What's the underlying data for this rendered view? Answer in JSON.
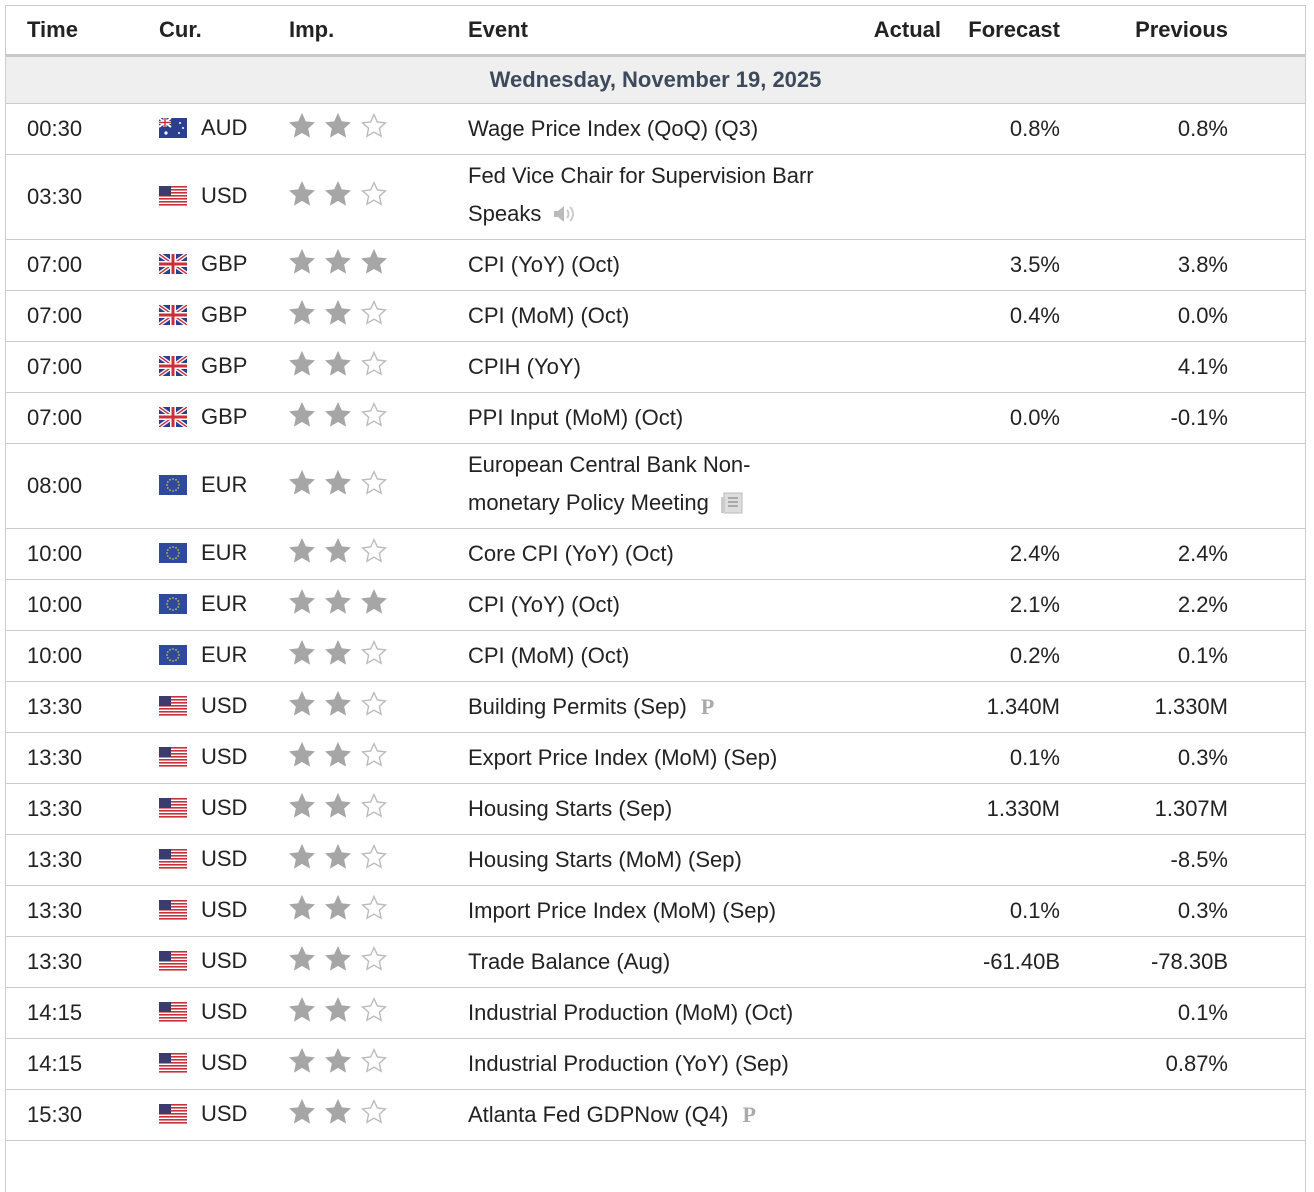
{
  "header": {
    "columns": [
      "Time",
      "Cur.",
      "Imp.",
      "Event",
      "Actual",
      "Forecast",
      "Previous"
    ]
  },
  "date": "Wednesday, November 19, 2025",
  "rows": [
    {
      "time": "00:30",
      "flag": "au",
      "currency": "AUD",
      "importance": 2,
      "event": "Wage Price Index (QoQ) (Q3)",
      "forecast": "0.8%",
      "previous": "0.8%"
    },
    {
      "time": "03:30",
      "flag": "us",
      "currency": "USD",
      "importance": 2,
      "event": "Fed Vice Chair for Supervision Barr Speaks",
      "icon": "speech"
    },
    {
      "time": "07:00",
      "flag": "gb",
      "currency": "GBP",
      "importance": 3,
      "event": "CPI (YoY) (Oct)",
      "forecast": "3.5%",
      "previous": "3.8%"
    },
    {
      "time": "07:00",
      "flag": "gb",
      "currency": "GBP",
      "importance": 2,
      "event": "CPI (MoM) (Oct)",
      "forecast": "0.4%",
      "previous": "0.0%"
    },
    {
      "time": "07:00",
      "flag": "gb",
      "currency": "GBP",
      "importance": 2,
      "event": "CPIH (YoY)",
      "previous": "4.1%"
    },
    {
      "time": "07:00",
      "flag": "gb",
      "currency": "GBP",
      "importance": 2,
      "event": "PPI Input (MoM) (Oct)",
      "forecast": "0.0%",
      "previous": "-0.1%"
    },
    {
      "time": "08:00",
      "flag": "eu",
      "currency": "EUR",
      "importance": 2,
      "event": "European Central Bank Non-monetary Policy Meeting",
      "icon": "report"
    },
    {
      "time": "10:00",
      "flag": "eu",
      "currency": "EUR",
      "importance": 2,
      "event": "Core CPI (YoY) (Oct)",
      "forecast": "2.4%",
      "previous": "2.4%"
    },
    {
      "time": "10:00",
      "flag": "eu",
      "currency": "EUR",
      "importance": 3,
      "event": "CPI (YoY) (Oct)",
      "forecast": "2.1%",
      "previous": "2.2%"
    },
    {
      "time": "10:00",
      "flag": "eu",
      "currency": "EUR",
      "importance": 2,
      "event": "CPI (MoM) (Oct)",
      "forecast": "0.2%",
      "previous": "0.1%"
    },
    {
      "time": "13:30",
      "flag": "us",
      "currency": "USD",
      "importance": 2,
      "event": "Building Permits (Sep)",
      "marker": "P",
      "forecast": "1.340M",
      "previous": "1.330M"
    },
    {
      "time": "13:30",
      "flag": "us",
      "currency": "USD",
      "importance": 2,
      "event": "Export Price Index (MoM) (Sep)",
      "forecast": "0.1%",
      "previous": "0.3%"
    },
    {
      "time": "13:30",
      "flag": "us",
      "currency": "USD",
      "importance": 2,
      "event": "Housing Starts (Sep)",
      "forecast": "1.330M",
      "previous": "1.307M"
    },
    {
      "time": "13:30",
      "flag": "us",
      "currency": "USD",
      "importance": 2,
      "event": "Housing Starts (MoM) (Sep)",
      "previous": "-8.5%"
    },
    {
      "time": "13:30",
      "flag": "us",
      "currency": "USD",
      "importance": 2,
      "event": "Import Price Index (MoM) (Sep)",
      "forecast": "0.1%",
      "previous": "0.3%"
    },
    {
      "time": "13:30",
      "flag": "us",
      "currency": "USD",
      "importance": 2,
      "event": "Trade Balance (Aug)",
      "forecast": "-61.40B",
      "previous": "-78.30B"
    },
    {
      "time": "14:15",
      "flag": "us",
      "currency": "USD",
      "importance": 2,
      "event": "Industrial Production (MoM) (Oct)",
      "previous": "0.1%"
    },
    {
      "time": "14:15",
      "flag": "us",
      "currency": "USD",
      "importance": 2,
      "event": "Industrial Production (YoY) (Sep)",
      "previous": "0.87%"
    },
    {
      "time": "15:30",
      "flag": "us",
      "currency": "USD",
      "importance": 2,
      "event": "Atlanta Fed GDPNow (Q4)",
      "marker": "P"
    }
  ]
}
